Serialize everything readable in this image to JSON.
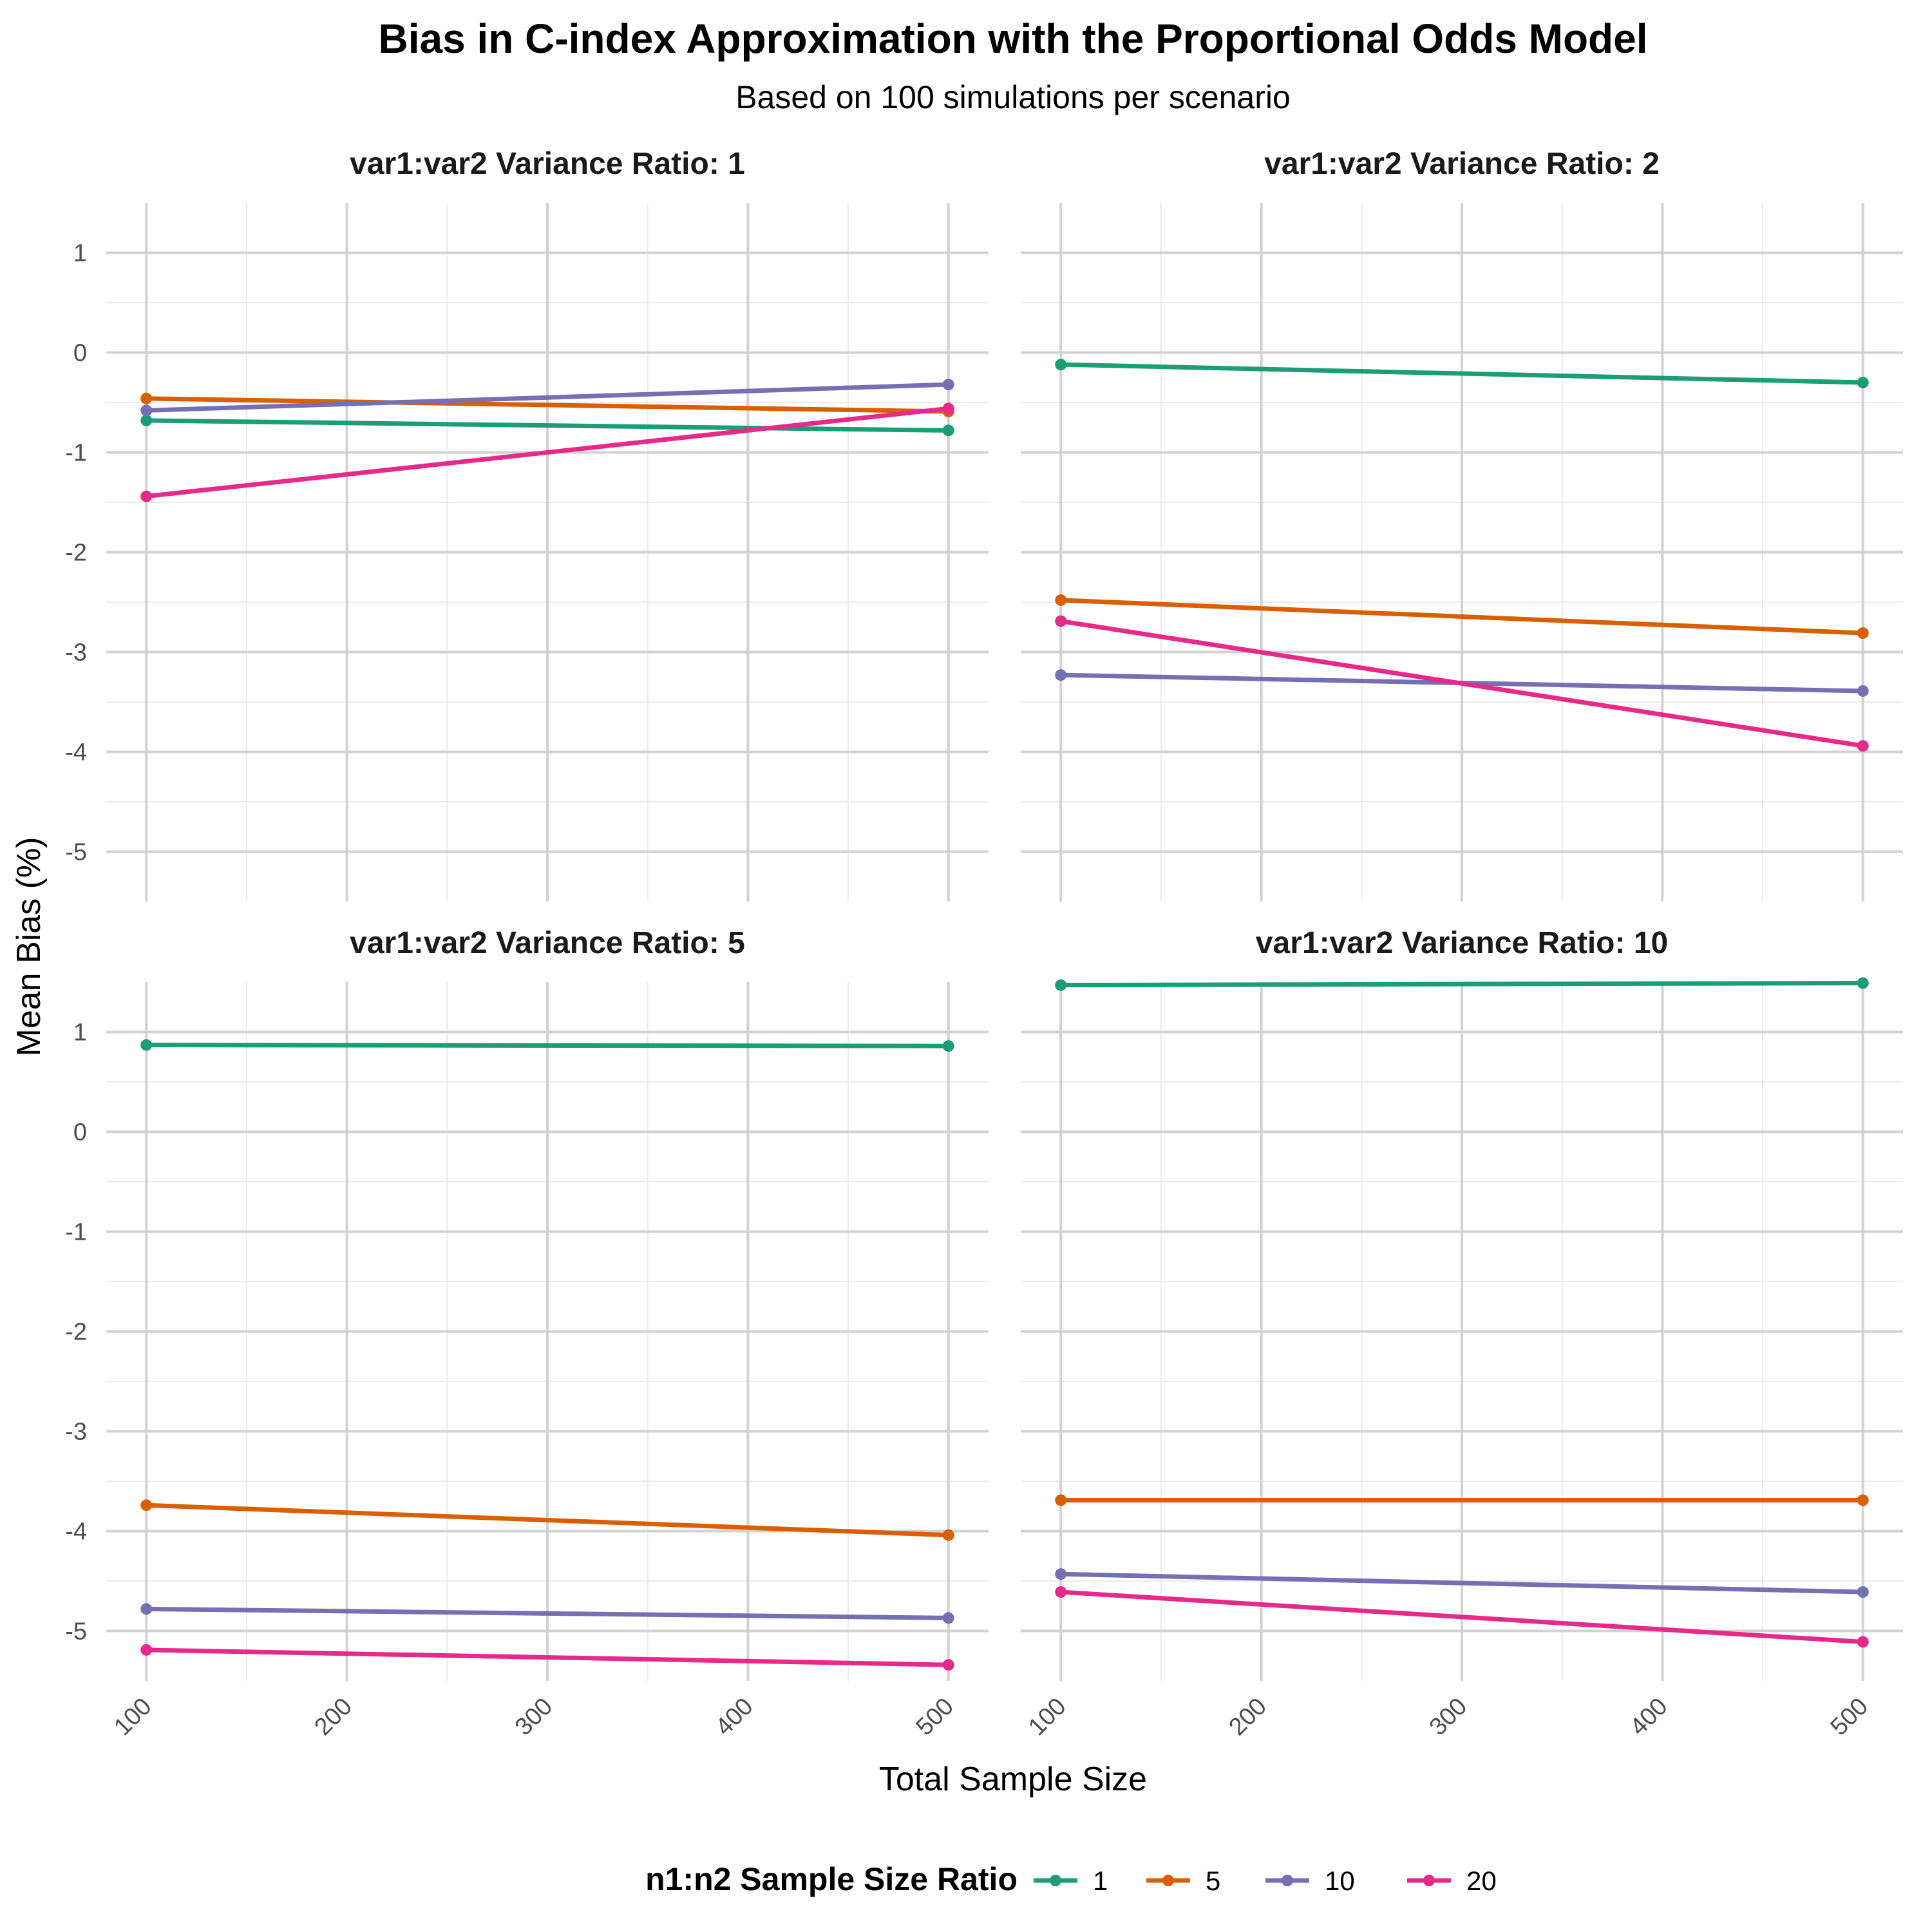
{
  "chart_data": {
    "type": "line",
    "title": "Bias in C-index Approximation with the Proportional Odds Model",
    "subtitle": "Based on 100 simulations per scenario",
    "xlabel": "Total Sample Size",
    "ylabel": "Mean Bias (%)",
    "x_ticks": [
      100,
      200,
      300,
      400,
      500
    ],
    "xlim": [
      80,
      520
    ],
    "legend": {
      "title": "n1:n2 Sample Size Ratio",
      "placement": "bottom",
      "entries": [
        "1",
        "5",
        "10",
        "20"
      ]
    },
    "colors": {
      "1": "#1b9e77",
      "5": "#d95f02",
      "10": "#7570b3",
      "20": "#e7298a"
    },
    "grid": true,
    "panels": [
      {
        "strip": "var1:var2 Variance Ratio: 1",
        "ylim": [
          -5.5,
          1.5
        ],
        "y_ticks": [
          1,
          0,
          -1,
          -2,
          -3,
          -4,
          -5
        ],
        "series": [
          {
            "name": "1",
            "x": [
              100,
              500
            ],
            "y": [
              -0.68,
              -0.78
            ]
          },
          {
            "name": "5",
            "x": [
              100,
              500
            ],
            "y": [
              -0.46,
              -0.59
            ]
          },
          {
            "name": "10",
            "x": [
              100,
              500
            ],
            "y": [
              -0.58,
              -0.32
            ]
          },
          {
            "name": "20",
            "x": [
              100,
              500
            ],
            "y": [
              -1.44,
              -0.56
            ]
          }
        ]
      },
      {
        "strip": "var1:var2 Variance Ratio: 2",
        "ylim": [
          -5.5,
          1.5
        ],
        "y_ticks": [
          1,
          0,
          -1,
          -2,
          -3,
          -4,
          -5
        ],
        "series": [
          {
            "name": "1",
            "x": [
              100,
              500
            ],
            "y": [
              -0.12,
              -0.3
            ]
          },
          {
            "name": "5",
            "x": [
              100,
              500
            ],
            "y": [
              -2.48,
              -2.81
            ]
          },
          {
            "name": "10",
            "x": [
              100,
              500
            ],
            "y": [
              -3.23,
              -3.39
            ]
          },
          {
            "name": "20",
            "x": [
              100,
              500
            ],
            "y": [
              -2.69,
              -3.94
            ]
          }
        ]
      },
      {
        "strip": "var1:var2 Variance Ratio: 5",
        "ylim": [
          -5.5,
          1.5
        ],
        "y_ticks": [
          1,
          0,
          -1,
          -2,
          -3,
          -4,
          -5
        ],
        "series": [
          {
            "name": "1",
            "x": [
              100,
              500
            ],
            "y": [
              0.87,
              0.86
            ]
          },
          {
            "name": "5",
            "x": [
              100,
              500
            ],
            "y": [
              -3.74,
              -4.04
            ]
          },
          {
            "name": "10",
            "x": [
              100,
              500
            ],
            "y": [
              -4.78,
              -4.87
            ]
          },
          {
            "name": "20",
            "x": [
              100,
              500
            ],
            "y": [
              -5.19,
              -5.34
            ]
          }
        ]
      },
      {
        "strip": "var1:var2 Variance Ratio: 10",
        "ylim": [
          -5.5,
          1.5
        ],
        "y_ticks": [
          1,
          0,
          -1,
          -2,
          -3,
          -4,
          -5
        ],
        "series": [
          {
            "name": "1",
            "x": [
              100,
              500
            ],
            "y": [
              1.47,
              1.49
            ]
          },
          {
            "name": "5",
            "x": [
              100,
              500
            ],
            "y": [
              -3.69,
              -3.69
            ]
          },
          {
            "name": "10",
            "x": [
              100,
              500
            ],
            "y": [
              -4.43,
              -4.61
            ]
          },
          {
            "name": "20",
            "x": [
              100,
              500
            ],
            "y": [
              -4.61,
              -5.11
            ]
          }
        ]
      }
    ]
  }
}
